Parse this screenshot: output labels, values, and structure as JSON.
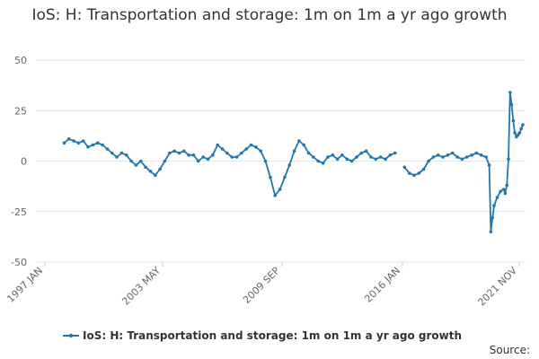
{
  "chart_data": {
    "type": "line",
    "title": "IoS: H: Transportation and storage: 1m on 1m a yr ago growth",
    "xlabel": "",
    "ylabel": "",
    "ylim": [
      -50,
      50
    ],
    "yticks": [
      "50",
      "25",
      "0",
      "-25",
      "-50"
    ],
    "x_tick_labels": [
      "1997 JAN",
      "2003 MAY",
      "2009 SEP",
      "2016 JAN",
      "2021 NOV"
    ],
    "x_range": [
      "1997-01",
      "2021-12"
    ],
    "grid": true,
    "legend": "bottom",
    "source_label": "Source:",
    "series": [
      {
        "name": "IoS: H: Transportation and storage: 1m on 1m a yr ago growth",
        "color": "#1f78b4",
        "points": [
          [
            "1998-01",
            9
          ],
          [
            "1998-04",
            11
          ],
          [
            "1998-07",
            10
          ],
          [
            "1998-10",
            9
          ],
          [
            "1999-01",
            10
          ],
          [
            "1999-04",
            7
          ],
          [
            "1999-07",
            8
          ],
          [
            "1999-10",
            9
          ],
          [
            "2000-01",
            8
          ],
          [
            "2000-04",
            6
          ],
          [
            "2000-07",
            4
          ],
          [
            "2000-10",
            2
          ],
          [
            "2001-01",
            4
          ],
          [
            "2001-04",
            3
          ],
          [
            "2001-07",
            0
          ],
          [
            "2001-10",
            -2
          ],
          [
            "2002-01",
            0
          ],
          [
            "2002-04",
            -3
          ],
          [
            "2002-07",
            -5
          ],
          [
            "2002-10",
            -7
          ],
          [
            "2003-01",
            -4
          ],
          [
            "2003-04",
            0
          ],
          [
            "2003-07",
            4
          ],
          [
            "2003-10",
            5
          ],
          [
            "2004-01",
            4
          ],
          [
            "2004-04",
            5
          ],
          [
            "2004-07",
            3
          ],
          [
            "2004-10",
            3
          ],
          [
            "2005-01",
            0
          ],
          [
            "2005-04",
            2
          ],
          [
            "2005-07",
            1
          ],
          [
            "2005-10",
            3
          ],
          [
            "2006-01",
            8
          ],
          [
            "2006-04",
            6
          ],
          [
            "2006-07",
            4
          ],
          [
            "2006-10",
            2
          ],
          [
            "2007-01",
            2
          ],
          [
            "2007-04",
            4
          ],
          [
            "2007-07",
            6
          ],
          [
            "2007-10",
            8
          ],
          [
            "2008-01",
            7
          ],
          [
            "2008-04",
            5
          ],
          [
            "2008-07",
            0
          ],
          [
            "2008-10",
            -8
          ],
          [
            "2009-01",
            -17
          ],
          [
            "2009-04",
            -14
          ],
          [
            "2009-07",
            -8
          ],
          [
            "2009-10",
            -2
          ],
          [
            "2010-01",
            5
          ],
          [
            "2010-04",
            10
          ],
          [
            "2010-07",
            8
          ],
          [
            "2010-10",
            4
          ],
          [
            "2011-01",
            2
          ],
          [
            "2011-04",
            0
          ],
          [
            "2011-07",
            -1
          ],
          [
            "2011-10",
            2
          ],
          [
            "2012-01",
            3
          ],
          [
            "2012-04",
            1
          ],
          [
            "2012-07",
            3
          ],
          [
            "2012-10",
            1
          ],
          [
            "2013-01",
            0
          ],
          [
            "2013-04",
            2
          ],
          [
            "2013-07",
            4
          ],
          [
            "2013-10",
            5
          ],
          [
            "2014-01",
            2
          ],
          [
            "2014-04",
            1
          ],
          [
            "2014-07",
            2
          ],
          [
            "2014-10",
            1
          ],
          [
            "2015-01",
            3
          ],
          [
            "2015-04",
            4
          ]
        ]
      },
      {
        "name": "",
        "color": "#1f78b4",
        "points": [
          [
            "2015-10",
            -3
          ],
          [
            "2016-01",
            -6
          ],
          [
            "2016-04",
            -7
          ],
          [
            "2016-07",
            -6
          ],
          [
            "2016-10",
            -4
          ],
          [
            "2017-01",
            0
          ],
          [
            "2017-04",
            2
          ],
          [
            "2017-07",
            3
          ],
          [
            "2017-10",
            2
          ],
          [
            "2018-01",
            3
          ],
          [
            "2018-04",
            4
          ],
          [
            "2018-07",
            2
          ],
          [
            "2018-10",
            1
          ],
          [
            "2019-01",
            2
          ],
          [
            "2019-04",
            3
          ],
          [
            "2019-07",
            4
          ],
          [
            "2019-10",
            3
          ],
          [
            "2020-01",
            2
          ],
          [
            "2020-03",
            -2
          ],
          [
            "2020-04",
            -35
          ],
          [
            "2020-05",
            -28
          ],
          [
            "2020-06",
            -22
          ],
          [
            "2020-08",
            -18
          ],
          [
            "2020-10",
            -15
          ],
          [
            "2020-12",
            -14
          ],
          [
            "2021-01",
            -16
          ],
          [
            "2021-02",
            -12
          ],
          [
            "2021-03",
            1
          ],
          [
            "2021-04",
            34
          ],
          [
            "2021-05",
            28
          ],
          [
            "2021-06",
            20
          ],
          [
            "2021-07",
            14
          ],
          [
            "2021-08",
            12
          ],
          [
            "2021-09",
            13
          ],
          [
            "2021-10",
            14
          ],
          [
            "2021-11",
            16
          ],
          [
            "2021-12",
            18
          ]
        ]
      }
    ]
  }
}
